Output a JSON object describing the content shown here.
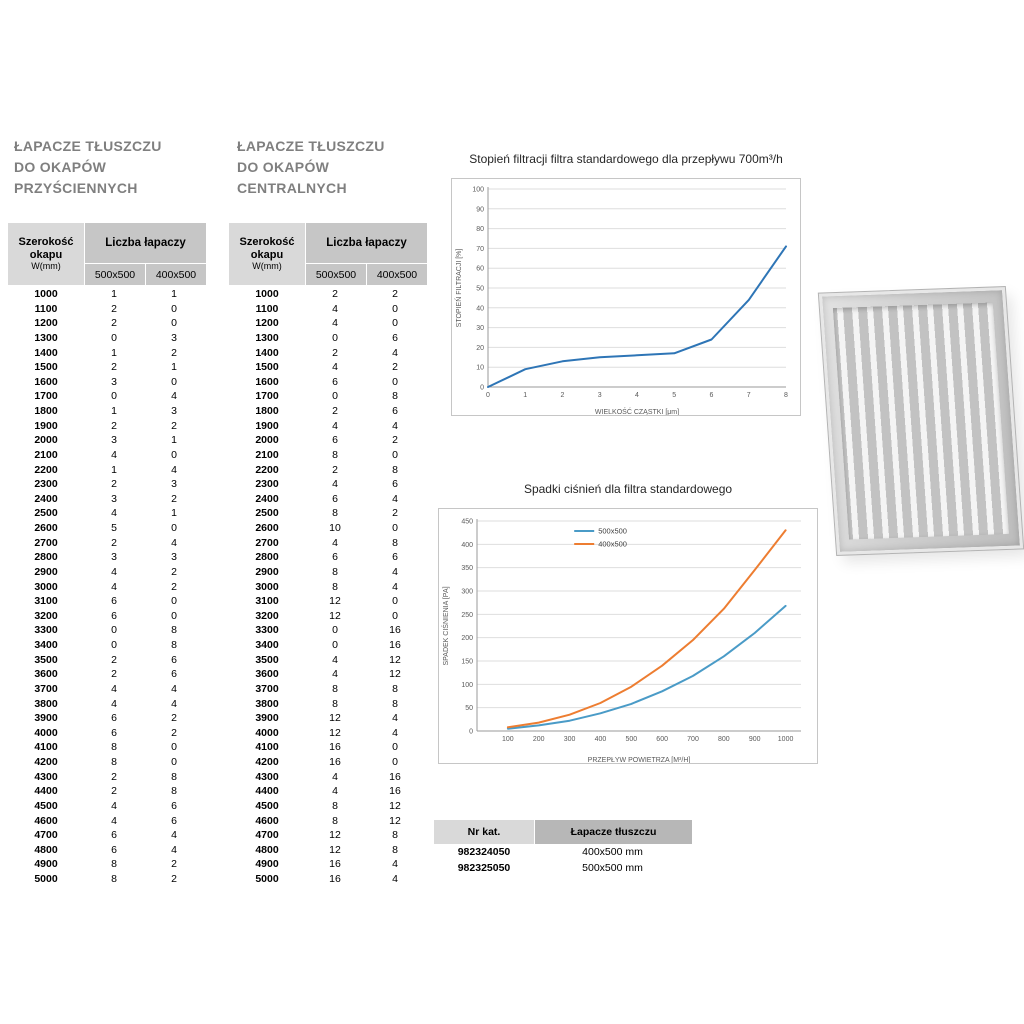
{
  "headings": {
    "wall": [
      "ŁAPACZE TŁUSZCZU",
      "DO OKAPÓW",
      "PRZYŚCIENNYCH"
    ],
    "central": [
      "ŁAPACZE TŁUSZCZU",
      "DO OKAPÓW",
      "CENTRALNYCH"
    ]
  },
  "selection_tables": {
    "header": {
      "width_label": "Szerokość",
      "width_label2": "okapu",
      "width_unit": "W(mm)",
      "group_label": "Liczba łapaczy",
      "size_columns": [
        "500x500",
        "400x500"
      ]
    },
    "wall_rows": [
      [
        1000,
        1,
        1
      ],
      [
        1100,
        2,
        0
      ],
      [
        1200,
        2,
        0
      ],
      [
        1300,
        0,
        3
      ],
      [
        1400,
        1,
        2
      ],
      [
        1500,
        2,
        1
      ],
      [
        1600,
        3,
        0
      ],
      [
        1700,
        0,
        4
      ],
      [
        1800,
        1,
        3
      ],
      [
        1900,
        2,
        2
      ],
      [
        2000,
        3,
        1
      ],
      [
        2100,
        4,
        0
      ],
      [
        2200,
        1,
        4
      ],
      [
        2300,
        2,
        3
      ],
      [
        2400,
        3,
        2
      ],
      [
        2500,
        4,
        1
      ],
      [
        2600,
        5,
        0
      ],
      [
        2700,
        2,
        4
      ],
      [
        2800,
        3,
        3
      ],
      [
        2900,
        4,
        2
      ],
      [
        3000,
        4,
        2
      ],
      [
        3100,
        6,
        0
      ],
      [
        3200,
        6,
        0
      ],
      [
        3300,
        0,
        8
      ],
      [
        3400,
        0,
        8
      ],
      [
        3500,
        2,
        6
      ],
      [
        3600,
        2,
        6
      ],
      [
        3700,
        4,
        4
      ],
      [
        3800,
        4,
        4
      ],
      [
        3900,
        6,
        2
      ],
      [
        4000,
        6,
        2
      ],
      [
        4100,
        8,
        0
      ],
      [
        4200,
        8,
        0
      ],
      [
        4300,
        2,
        8
      ],
      [
        4400,
        2,
        8
      ],
      [
        4500,
        4,
        6
      ],
      [
        4600,
        4,
        6
      ],
      [
        4700,
        6,
        4
      ],
      [
        4800,
        6,
        4
      ],
      [
        4900,
        8,
        2
      ],
      [
        5000,
        8,
        2
      ]
    ],
    "central_rows": [
      [
        1000,
        2,
        2
      ],
      [
        1100,
        4,
        0
      ],
      [
        1200,
        4,
        0
      ],
      [
        1300,
        0,
        6
      ],
      [
        1400,
        2,
        4
      ],
      [
        1500,
        4,
        2
      ],
      [
        1600,
        6,
        0
      ],
      [
        1700,
        0,
        8
      ],
      [
        1800,
        2,
        6
      ],
      [
        1900,
        4,
        4
      ],
      [
        2000,
        6,
        2
      ],
      [
        2100,
        8,
        0
      ],
      [
        2200,
        2,
        8
      ],
      [
        2300,
        4,
        6
      ],
      [
        2400,
        6,
        4
      ],
      [
        2500,
        8,
        2
      ],
      [
        2600,
        10,
        0
      ],
      [
        2700,
        4,
        8
      ],
      [
        2800,
        6,
        6
      ],
      [
        2900,
        8,
        4
      ],
      [
        3000,
        8,
        4
      ],
      [
        3100,
        12,
        0
      ],
      [
        3200,
        12,
        0
      ],
      [
        3300,
        0,
        16
      ],
      [
        3400,
        0,
        16
      ],
      [
        3500,
        4,
        12
      ],
      [
        3600,
        4,
        12
      ],
      [
        3700,
        8,
        8
      ],
      [
        3800,
        8,
        8
      ],
      [
        3900,
        12,
        4
      ],
      [
        4000,
        12,
        4
      ],
      [
        4100,
        16,
        0
      ],
      [
        4200,
        16,
        0
      ],
      [
        4300,
        4,
        16
      ],
      [
        4400,
        4,
        16
      ],
      [
        4500,
        8,
        12
      ],
      [
        4600,
        8,
        12
      ],
      [
        4700,
        12,
        8
      ],
      [
        4800,
        12,
        8
      ],
      [
        4900,
        16,
        4
      ],
      [
        5000,
        16,
        4
      ]
    ]
  },
  "chart_data": [
    {
      "type": "line",
      "title": "Stopień filtracji filtra standardowego dla przepływu 700m³/h",
      "xlabel": "WIELKOŚĆ CZĄSTKI [μm]",
      "ylabel": "STOPIEŃ FILTRACJI [%]",
      "x": [
        0,
        1,
        2,
        3,
        4,
        5,
        6,
        7,
        8
      ],
      "xlim": [
        0,
        8
      ],
      "ylim": [
        0,
        100
      ],
      "yticks": [
        0,
        10,
        20,
        30,
        40,
        50,
        60,
        70,
        80,
        90,
        100
      ],
      "grid": true,
      "legend": "none",
      "series": [
        {
          "name": "Stopień filtracji",
          "color": "#2e75b6",
          "values": [
            0,
            9,
            13,
            15,
            16,
            17,
            24,
            44,
            71
          ]
        }
      ]
    },
    {
      "type": "line",
      "title": "Spadki ciśnień dla filtra standardowego",
      "xlabel": "PRZEPŁYW POWIETRZA [M³/H]",
      "ylabel": "SPADEK CIŚNIENIA [PA]",
      "x": [
        100,
        200,
        300,
        400,
        500,
        600,
        700,
        800,
        900,
        1000
      ],
      "xlim": [
        0,
        1050
      ],
      "ylim": [
        0,
        450
      ],
      "yticks": [
        0,
        50,
        100,
        150,
        200,
        250,
        300,
        350,
        400,
        450
      ],
      "grid": true,
      "legend": "top",
      "series": [
        {
          "name": "500x500",
          "color": "#4a9bc7",
          "values": [
            5,
            12,
            22,
            38,
            58,
            85,
            118,
            160,
            210,
            268
          ]
        },
        {
          "name": "400x500",
          "color": "#ed7d31",
          "values": [
            8,
            18,
            35,
            60,
            95,
            140,
            195,
            262,
            345,
            430
          ]
        }
      ]
    }
  ],
  "catalog_table": {
    "headers": [
      "Nr kat.",
      "Łapacze tłuszczu"
    ],
    "rows": [
      [
        "982324050",
        "400x500 mm"
      ],
      [
        "982325050",
        "500x500 mm"
      ]
    ]
  }
}
